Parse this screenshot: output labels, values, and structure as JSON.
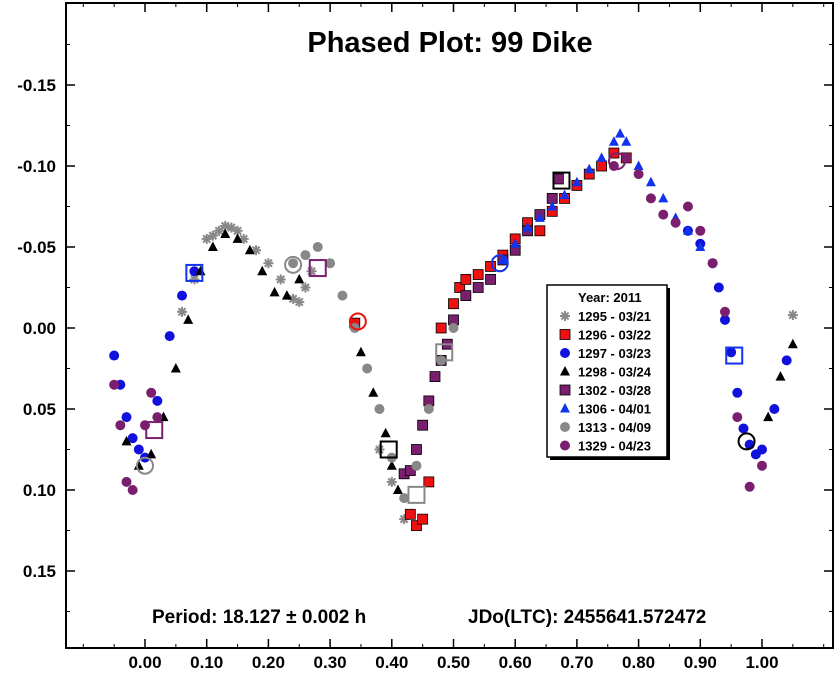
{
  "chart_data": {
    "type": "scatter",
    "title": "Phased Plot: 99 Dike",
    "xlabel": "",
    "ylabel": "",
    "xlim": [
      -0.12,
      1.12
    ],
    "ylim": [
      -0.19,
      0.2
    ],
    "y_inverted": true,
    "x_ticks": [
      0.0,
      0.1,
      0.2,
      0.3,
      0.4,
      0.5,
      0.6,
      0.7,
      0.8,
      0.9,
      1.0
    ],
    "x_tick_labels": [
      "0.00",
      "0.10",
      "0.20",
      "0.30",
      "0.40",
      "0.50",
      "0.60",
      "0.70",
      "0.80",
      "0.90",
      "1.00"
    ],
    "y_ticks": [
      -0.15,
      -0.1,
      -0.05,
      0.0,
      0.05,
      0.1,
      0.15
    ],
    "y_tick_labels": [
      "-0.15",
      "-0.10",
      "-0.05",
      "0.00",
      "0.05",
      "0.10",
      "0.15"
    ],
    "grid": false,
    "legend_position": "right-center",
    "legend_title": "Year: 2011",
    "period_text": "Period: 18.127 ± 0.002 h",
    "epoch_text": "JDo(LTC): 2455641.572472",
    "series": [
      {
        "name": "1295 - 03/21",
        "marker": "asterisk",
        "color": "#888888",
        "x": [
          0.06,
          0.08,
          0.1,
          0.11,
          0.12,
          0.13,
          0.14,
          0.15,
          0.16,
          0.18,
          0.2,
          0.22,
          0.24,
          0.25,
          0.26,
          0.27,
          0.38,
          0.4,
          0.42,
          0.43,
          1.05
        ],
        "y": [
          -0.01,
          -0.03,
          -0.055,
          -0.057,
          -0.06,
          -0.063,
          -0.062,
          -0.06,
          -0.055,
          -0.048,
          -0.04,
          -0.03,
          -0.018,
          -0.016,
          -0.025,
          -0.035,
          0.075,
          0.095,
          0.118,
          0.115,
          -0.008
        ]
      },
      {
        "name": "1296 - 03/22",
        "marker": "square",
        "color": "#ee1111",
        "x": [
          0.34,
          0.43,
          0.44,
          0.45,
          0.46,
          0.48,
          0.5,
          0.51,
          0.52,
          0.54,
          0.56,
          0.58,
          0.6,
          0.62,
          0.64,
          0.66,
          0.68,
          0.7,
          0.72,
          0.74,
          0.76,
          0.78
        ],
        "y": [
          -0.003,
          0.115,
          0.122,
          0.118,
          0.095,
          0.0,
          -0.015,
          -0.025,
          -0.03,
          -0.033,
          -0.038,
          -0.045,
          -0.055,
          -0.065,
          -0.06,
          -0.072,
          -0.08,
          -0.088,
          -0.095,
          -0.1,
          -0.108,
          -0.105
        ]
      },
      {
        "name": "1297 - 03/23",
        "marker": "circle",
        "color": "#1111dd",
        "x": [
          -0.05,
          -0.04,
          -0.03,
          -0.02,
          -0.01,
          0.0,
          0.02,
          0.04,
          0.06,
          0.08,
          0.88,
          0.9,
          0.92,
          0.93,
          0.94,
          0.95,
          0.96,
          0.97,
          0.98,
          0.99,
          1.0,
          1.02,
          1.04
        ],
        "y": [
          0.017,
          0.035,
          0.055,
          0.068,
          0.075,
          0.08,
          0.045,
          0.005,
          -0.02,
          -0.035,
          -0.06,
          -0.052,
          -0.04,
          -0.025,
          -0.005,
          0.015,
          0.04,
          0.062,
          0.072,
          0.078,
          0.075,
          0.05,
          0.02
        ]
      },
      {
        "name": "1298 - 03/24",
        "marker": "triangle",
        "color": "#000000",
        "x": [
          -0.03,
          -0.01,
          0.01,
          0.03,
          0.05,
          0.07,
          0.09,
          0.11,
          0.13,
          0.15,
          0.17,
          0.19,
          0.21,
          0.23,
          0.25,
          0.35,
          0.37,
          0.39,
          0.4,
          0.41,
          1.01,
          1.03,
          1.05
        ],
        "y": [
          0.07,
          0.085,
          0.078,
          0.055,
          0.025,
          -0.005,
          -0.035,
          -0.05,
          -0.058,
          -0.055,
          -0.048,
          -0.035,
          -0.022,
          -0.02,
          -0.03,
          0.015,
          0.04,
          0.065,
          0.085,
          0.1,
          0.055,
          0.03,
          0.01
        ]
      },
      {
        "name": "1302 - 03/28",
        "marker": "square",
        "color": "#7a1f6e",
        "x": [
          0.42,
          0.43,
          0.44,
          0.45,
          0.46,
          0.47,
          0.48,
          0.49,
          0.5,
          0.52,
          0.54,
          0.56,
          0.58,
          0.6,
          0.62,
          0.64,
          0.66,
          0.67
        ],
        "y": [
          0.09,
          0.088,
          0.075,
          0.06,
          0.045,
          0.03,
          0.02,
          0.01,
          -0.005,
          -0.02,
          -0.025,
          -0.03,
          -0.042,
          -0.048,
          -0.06,
          -0.07,
          -0.08,
          -0.092
        ]
      },
      {
        "name": "1306 - 04/01",
        "marker": "triangle",
        "color": "#1133ee",
        "x": [
          0.58,
          0.6,
          0.62,
          0.64,
          0.66,
          0.68,
          0.7,
          0.72,
          0.74,
          0.76,
          0.77,
          0.78,
          0.8,
          0.82,
          0.84,
          0.86,
          0.88,
          0.9
        ],
        "y": [
          -0.042,
          -0.052,
          -0.062,
          -0.068,
          -0.075,
          -0.082,
          -0.09,
          -0.098,
          -0.105,
          -0.115,
          -0.12,
          -0.115,
          -0.1,
          -0.09,
          -0.08,
          -0.068,
          -0.06,
          -0.05
        ]
      },
      {
        "name": "1313 - 04/09",
        "marker": "circle",
        "color": "#888888",
        "x": [
          0.24,
          0.26,
          0.28,
          0.3,
          0.32,
          0.34,
          0.36,
          0.38,
          0.4,
          0.42,
          0.44,
          0.46,
          0.48,
          0.5
        ],
        "y": [
          -0.04,
          -0.045,
          -0.05,
          -0.04,
          -0.02,
          0.0,
          0.025,
          0.05,
          0.08,
          0.105,
          0.085,
          0.05,
          0.02,
          0.0
        ]
      },
      {
        "name": "1329 - 04/23",
        "marker": "circle",
        "color": "#7a1f6e",
        "x": [
          -0.05,
          -0.04,
          -0.03,
          -0.02,
          0.0,
          0.01,
          0.02,
          0.76,
          0.78,
          0.8,
          0.82,
          0.84,
          0.86,
          0.88,
          0.9,
          0.92,
          0.94,
          0.96,
          0.98,
          1.0
        ],
        "y": [
          0.035,
          0.06,
          0.095,
          0.1,
          0.06,
          0.04,
          0.055,
          -0.1,
          -0.105,
          -0.095,
          -0.08,
          -0.07,
          -0.065,
          -0.075,
          -0.06,
          -0.04,
          -0.01,
          0.055,
          0.098,
          0.085
        ]
      }
    ],
    "highlight_markers": [
      {
        "marker": "square",
        "color": "#1133ee",
        "x": 0.08,
        "y": -0.034
      },
      {
        "marker": "circle",
        "color": "#888888",
        "x": 0.24,
        "y": -0.039
      },
      {
        "marker": "square",
        "color": "#7a1f6e",
        "x": 0.28,
        "y": -0.037
      },
      {
        "marker": "circle",
        "color": "#ee1111",
        "x": 0.345,
        "y": -0.004
      },
      {
        "marker": "square",
        "color": "#000000",
        "x": 0.395,
        "y": 0.075
      },
      {
        "marker": "square",
        "color": "#888888",
        "x": 0.44,
        "y": 0.103
      },
      {
        "marker": "square",
        "color": "#888888",
        "x": 0.485,
        "y": 0.015
      },
      {
        "marker": "circle",
        "color": "#1133ee",
        "x": 0.575,
        "y": -0.04
      },
      {
        "marker": "square",
        "color": "#000000",
        "x": 0.675,
        "y": -0.091
      },
      {
        "marker": "circle",
        "color": "#7a1f6e",
        "x": 0.765,
        "y": -0.103
      },
      {
        "marker": "square",
        "color": "#1133ee",
        "x": 0.955,
        "y": 0.017
      },
      {
        "marker": "circle",
        "color": "#000000",
        "x": 0.975,
        "y": 0.07
      },
      {
        "marker": "square",
        "color": "#7a1f6e",
        "x": 0.015,
        "y": 0.063
      },
      {
        "marker": "circle",
        "color": "#888888",
        "x": 0.0,
        "y": 0.085
      }
    ]
  }
}
